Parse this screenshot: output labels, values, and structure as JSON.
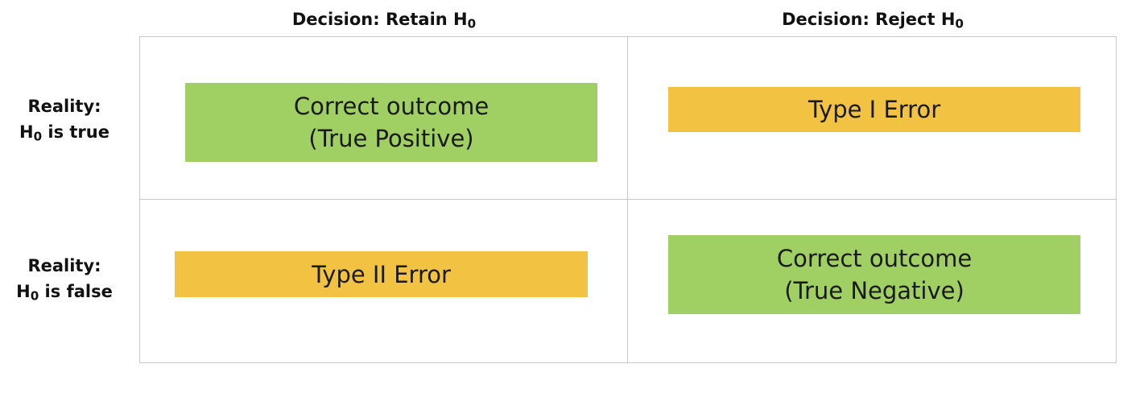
{
  "columns": {
    "retain": {
      "prefix": "Decision:  Retain H",
      "sub": "0"
    },
    "reject": {
      "prefix": "Decision:  Reject H",
      "sub": "0"
    }
  },
  "rows": {
    "true": {
      "line1": "Reality:",
      "line2_prefix": "H",
      "line2_sub": "0",
      "line2_suffix": " is true"
    },
    "false": {
      "line1": "Reality:",
      "line2_prefix": "H",
      "line2_sub": "0",
      "line2_suffix": " is false"
    }
  },
  "cells": {
    "true_retain": {
      "line1": "Correct outcome",
      "line2": "(True Positive)",
      "kind": "correct"
    },
    "true_reject": {
      "line1": "Type I Error",
      "kind": "error"
    },
    "false_retain": {
      "line1": "Type II Error",
      "kind": "error"
    },
    "false_reject": {
      "line1": "Correct outcome",
      "line2": "(True Negative)",
      "kind": "correct"
    }
  },
  "colors": {
    "correct": "#a0cf63",
    "error": "#f2c343",
    "grid_line": "#c8c8c8",
    "text": "#111111"
  }
}
